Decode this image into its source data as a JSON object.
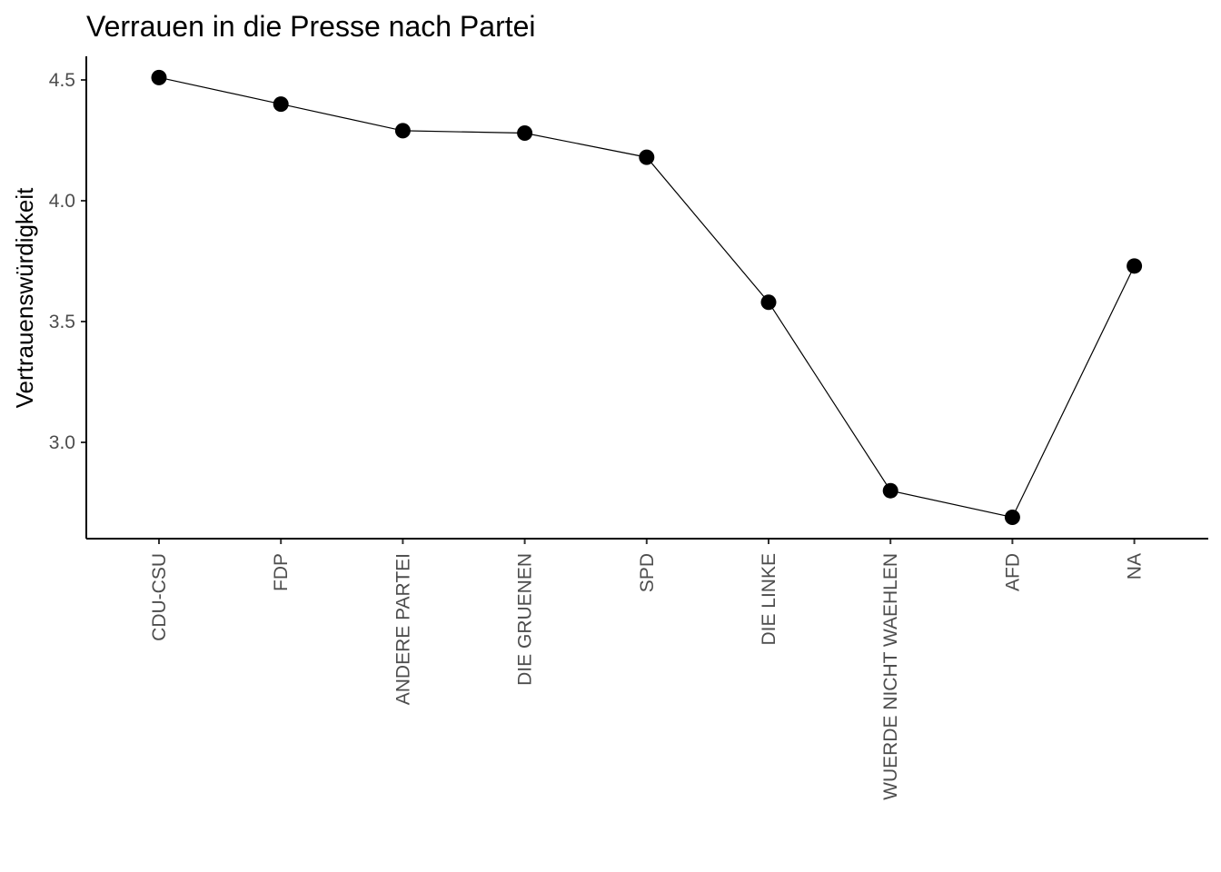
{
  "chart_data": {
    "type": "line",
    "title": "Verrauen in die Presse nach Partei",
    "xlabel": "",
    "ylabel": "Vertrauenswürdigkeit",
    "categories": [
      "CDU-CSU",
      "FDP",
      "ANDERE PARTEI",
      "DIE GRUENEN",
      "SPD",
      "DIE LINKE",
      "WUERDE NICHT WAEHLEN",
      "AFD",
      "NA"
    ],
    "values": [
      4.51,
      4.4,
      4.29,
      4.28,
      4.18,
      3.58,
      2.8,
      2.69,
      3.73
    ],
    "yticks": [
      3.0,
      3.5,
      4.0,
      4.5
    ],
    "ytick_labels": [
      "3.0",
      "3.5",
      "4.0",
      "4.5"
    ],
    "ylim": [
      2.6,
      4.6
    ],
    "grid": false,
    "legend": "none",
    "colors": {
      "line": "#000000",
      "points": "#000000",
      "tick_labels": "#4d4d4d"
    }
  }
}
